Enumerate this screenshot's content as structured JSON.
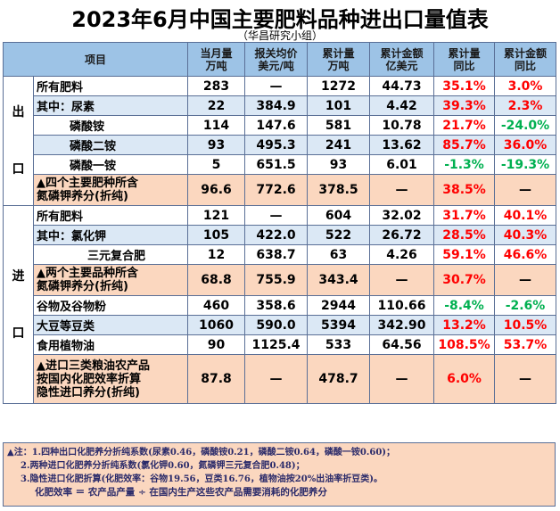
{
  "title": "2023年6月中国主要肥料品种进出口量值表",
  "subtitle": "（华昌研究小组）",
  "headers": [
    "项目",
    "当月量\n万吨",
    "报关均价\n美元/吨",
    "累计量\n万吨",
    "累计金额\n亿美元",
    "累计量\n同比",
    "累计金额\n同比"
  ],
  "groups": {
    "export": "出口",
    "import": "进口"
  },
  "export_rows": [
    {
      "label": "所有肥料",
      "v": [
        "283",
        "—",
        "1272",
        "44.73",
        "35.1%",
        "3.0%"
      ]
    },
    {
      "label": "其中：尿素",
      "v": [
        "22",
        "384.9",
        "101",
        "4.42",
        "39.3%",
        "2.3%"
      ]
    },
    {
      "label": "磷酸铵",
      "v": [
        "114",
        "147.6",
        "581",
        "10.78",
        "21.7%",
        "-24.0%"
      ]
    },
    {
      "label": "磷酸二铵",
      "v": [
        "93",
        "495.3",
        "241",
        "13.62",
        "85.7%",
        "36.0%"
      ]
    },
    {
      "label": "磷酸一铵",
      "v": [
        "5",
        "651.5",
        "93",
        "6.01",
        "-1.3%",
        "-19.3%"
      ]
    },
    {
      "label": "▲四个主要肥种所含\n氮磷钾养分(折纯)",
      "v": [
        "96.6",
        "772.6",
        "378.5",
        "—",
        "38.5%",
        "—"
      ]
    }
  ],
  "import_rows": [
    {
      "label": "所有肥料",
      "v": [
        "121",
        "—",
        "604",
        "32.02",
        "31.7%",
        "40.1%"
      ]
    },
    {
      "label": "其中：氯化钾",
      "v": [
        "105",
        "422.0",
        "522",
        "26.72",
        "28.5%",
        "40.3%"
      ]
    },
    {
      "label": "三元复合肥",
      "v": [
        "12",
        "638.7",
        "63",
        "4.26",
        "59.1%",
        "46.6%"
      ]
    },
    {
      "label": "▲两个主要品种所含\n氮磷钾养分(折纯)",
      "v": [
        "68.8",
        "755.9",
        "343.4",
        "—",
        "30.7%",
        "—"
      ]
    },
    {
      "label": "谷物及谷物粉",
      "v": [
        "460",
        "358.6",
        "2944",
        "110.66",
        "-8.4%",
        "-2.6%"
      ]
    },
    {
      "label": "大豆等豆类",
      "v": [
        "1060",
        "590.0",
        "5394",
        "342.90",
        "13.2%",
        "10.5%"
      ]
    },
    {
      "label": "食用植物油",
      "v": [
        "90",
        "1125.4",
        "533",
        "64.56",
        "108.5%",
        "53.7%"
      ]
    },
    {
      "label": "▲进口三类粮油农产品\n按国内化肥效率折算\n隐性进口养分(折纯)",
      "v": [
        "87.8",
        "—",
        "478.7",
        "—",
        "6.0%",
        "—"
      ]
    }
  ],
  "notes": [
    "▲注：1.四种出口化肥养分折纯系数(尿素0.46，磷酸铵0.21，磷酸二铵0.64，磷酸一铵0.60)；",
    "2.两种进口化肥养分折纯系数(氯化钾0.60，氮磷钾三元复合肥0.48)；",
    "3.隐性进口化肥折算(化肥效率：谷物19.56，豆类16.76，植物油按20%出油率折豆类)。",
    "化肥效率 ＝ 农产品产量 ÷ 在国内生产这些农产品需要消耗的化肥养分"
  ],
  "colors": {
    "header": "#9dc3e6",
    "light_blue": "#dbe8f5",
    "orange": "#fbd7bf",
    "positive": "#ff0000",
    "negative": "#00b050",
    "border": "#5a6f96"
  }
}
